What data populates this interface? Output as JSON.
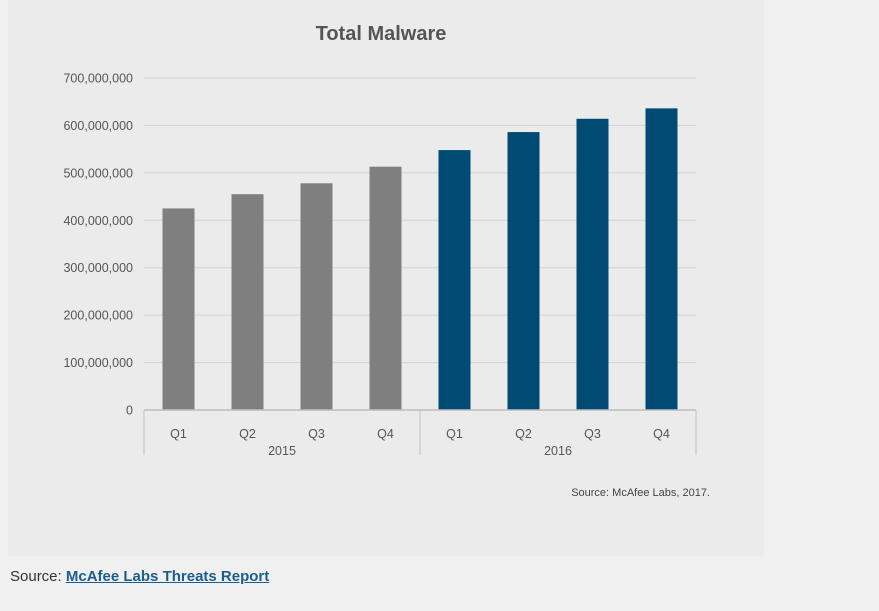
{
  "chart_data": {
    "type": "bar",
    "title": "Total Malware",
    "ylim": [
      0,
      700000000
    ],
    "yticks": [
      "0",
      "100,000,000",
      "200,000,000",
      "300,000,000",
      "400,000,000",
      "500,000,000",
      "600,000,000",
      "700,000,000"
    ],
    "categories": [
      "Q1",
      "Q2",
      "Q3",
      "Q4",
      "Q1",
      "Q2",
      "Q3",
      "Q4"
    ],
    "groups": [
      {
        "label": "2015",
        "color": "#7f7f7f"
      },
      {
        "label": "2016",
        "color": "#004b73"
      }
    ],
    "group_index": [
      0,
      0,
      0,
      0,
      1,
      1,
      1,
      1
    ],
    "values": [
      425000000,
      455000000,
      478000000,
      513000000,
      548000000,
      586000000,
      614000000,
      636000000
    ],
    "grid": true,
    "source_note": "Source: McAfee Labs, 2017."
  },
  "caption": {
    "prefix": "Source: ",
    "link_text": "McAfee Labs Threats Report"
  }
}
